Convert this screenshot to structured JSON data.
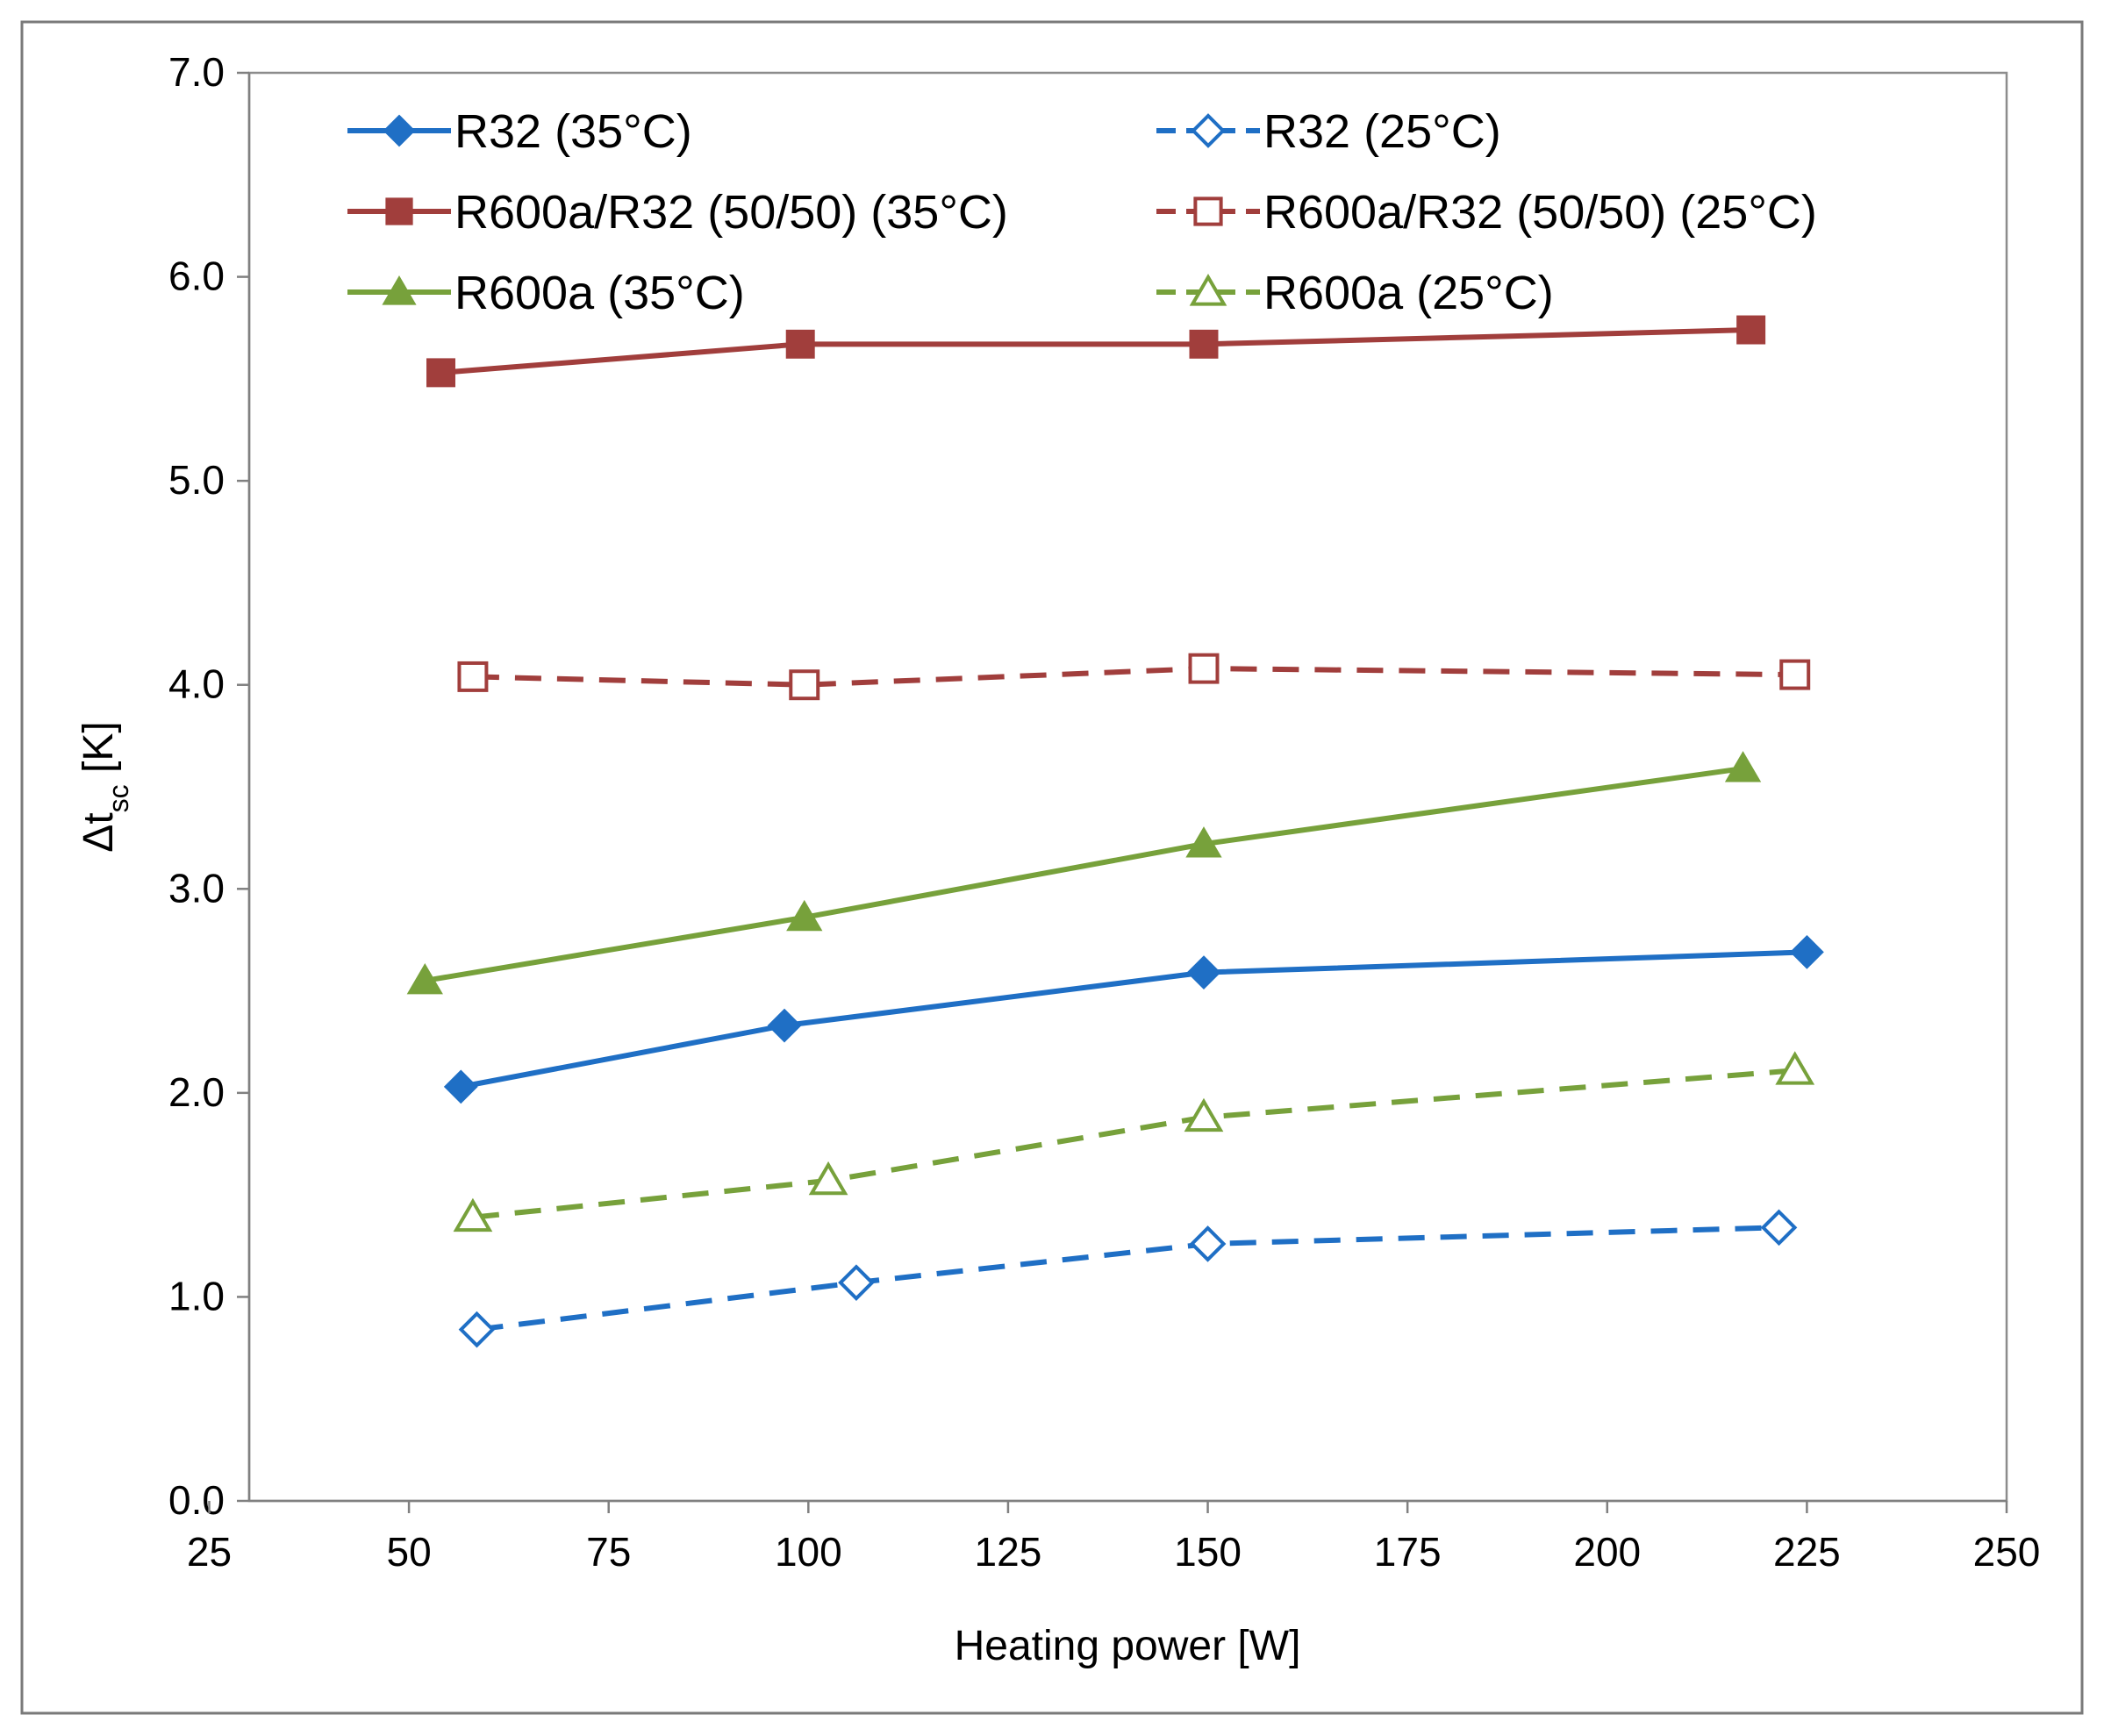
{
  "chart_data": {
    "type": "line",
    "xlabel": "Heating power [W]",
    "ylabel": {
      "main": "Δt",
      "subscript": "sc",
      "unit": " [K]"
    },
    "xlim": [
      25,
      250
    ],
    "ylim": [
      0,
      7
    ],
    "x_ticks": [
      25,
      50,
      75,
      100,
      125,
      150,
      175,
      200,
      225,
      250
    ],
    "y_ticks": [
      0,
      1,
      2,
      3,
      4,
      5,
      6,
      7
    ],
    "y_tick_labels": [
      "0.0",
      "1.0",
      "2.0",
      "3.0",
      "4.0",
      "5.0",
      "6.0",
      "7.0"
    ],
    "grid": false,
    "legend_position": "top, inside plot, two columns",
    "series": [
      {
        "name": "R32 (35°C)",
        "color": "#1F6FC5",
        "marker": "diamond",
        "filled": true,
        "dashed": false,
        "points": [
          [
            56.5,
            2.03
          ],
          [
            97,
            2.33
          ],
          [
            149.5,
            2.59
          ],
          [
            225,
            2.69
          ]
        ]
      },
      {
        "name": "R32 (25°C)",
        "color": "#1F6FC5",
        "marker": "diamond",
        "filled": false,
        "dashed": true,
        "points": [
          [
            58.5,
            0.84
          ],
          [
            106,
            1.07
          ],
          [
            150,
            1.26
          ],
          [
            221.5,
            1.34
          ]
        ]
      },
      {
        "name": "R600a/R32 (50/50) (35°C)",
        "color": "#A13E3C",
        "marker": "square",
        "filled": true,
        "dashed": false,
        "points": [
          [
            54,
            5.53
          ],
          [
            99,
            5.67
          ],
          [
            149.5,
            5.67
          ],
          [
            218,
            5.74
          ]
        ]
      },
      {
        "name": "R600a/R32 (50/50) (25°C)",
        "color": "#A13E3C",
        "marker": "square",
        "filled": false,
        "dashed": true,
        "points": [
          [
            58,
            4.04
          ],
          [
            99.5,
            4.0
          ],
          [
            149.5,
            4.08
          ],
          [
            223.5,
            4.05
          ]
        ]
      },
      {
        "name": "R600a (35°C)",
        "color": "#77A13B",
        "marker": "triangle",
        "filled": true,
        "dashed": false,
        "points": [
          [
            52,
            2.55
          ],
          [
            99.5,
            2.86
          ],
          [
            149.5,
            3.22
          ],
          [
            217,
            3.59
          ]
        ]
      },
      {
        "name": "R600a (25°C)",
        "color": "#77A13B",
        "marker": "triangle",
        "filled": false,
        "dashed": true,
        "points": [
          [
            58,
            1.39
          ],
          [
            102.5,
            1.57
          ],
          [
            149.5,
            1.88
          ],
          [
            223.5,
            2.11
          ]
        ]
      }
    ]
  }
}
